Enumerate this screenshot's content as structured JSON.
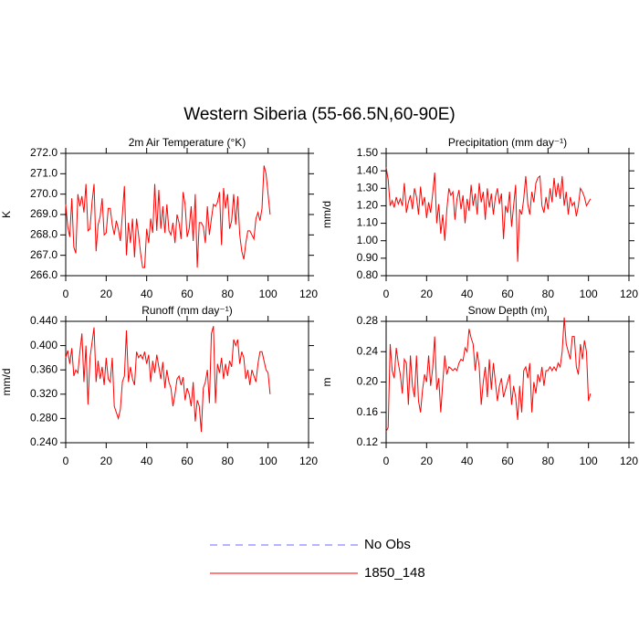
{
  "title": "Western Siberia (55-66.5N,60-90E)",
  "legend": [
    {
      "name": "No Obs",
      "color": "#6b6bff",
      "dash": "8 6"
    },
    {
      "name": "1850_148",
      "color": "#ff0000"
    }
  ],
  "chart_data": [
    {
      "type": "line",
      "title": "2m Air Temperature (°K)",
      "y_label": "K",
      "color": "#ff0000",
      "xlim": [
        0,
        120
      ],
      "xticks": [
        0,
        20,
        40,
        60,
        80,
        100,
        120
      ],
      "ylim": [
        266,
        272
      ],
      "yticks": [
        {
          "value": 266,
          "label": "266.0"
        },
        {
          "value": 267,
          "label": "267.0"
        },
        {
          "value": 268,
          "label": "268.0"
        },
        {
          "value": 269,
          "label": "269.0"
        },
        {
          "value": 270,
          "label": "270.0"
        },
        {
          "value": 271,
          "label": "271.0"
        },
        {
          "value": 272,
          "label": "272.0"
        }
      ],
      "x": [
        0,
        1,
        2,
        3,
        4,
        5,
        6,
        7,
        8,
        9,
        10,
        11,
        12,
        13,
        14,
        15,
        16,
        17,
        18,
        19,
        20,
        21,
        22,
        23,
        24,
        25,
        26,
        27,
        28,
        29,
        30,
        31,
        32,
        33,
        34,
        35,
        36,
        37,
        38,
        39,
        40,
        41,
        42,
        43,
        44,
        45,
        46,
        47,
        48,
        49,
        50,
        51,
        52,
        53,
        54,
        55,
        56,
        57,
        58,
        59,
        60,
        61,
        62,
        63,
        64,
        65,
        66,
        67,
        68,
        69,
        70,
        71,
        72,
        73,
        74,
        75,
        76,
        77,
        78,
        79,
        80,
        81,
        82,
        83,
        84,
        85,
        86,
        87,
        88,
        89,
        90,
        91,
        92,
        93,
        94,
        95,
        96,
        97,
        98,
        99,
        100,
        101
      ],
      "values": [
        269.5,
        268.4,
        267.9,
        269.8,
        267.4,
        267.1,
        270.0,
        269.4,
        269.9,
        269.1,
        270.5,
        268.2,
        268.3,
        269.6,
        270.5,
        267.2,
        268.5,
        268.9,
        269.8,
        268.0,
        268.1,
        269.3,
        269.3,
        268.5,
        268.0,
        268.7,
        268.3,
        267.7,
        269.0,
        270.4,
        267.0,
        268.6,
        267.6,
        268.8,
        266.9,
        268.8,
        268.0,
        267.1,
        266.4,
        266.4,
        268.3,
        267.6,
        268.8,
        268.1,
        270.5,
        268.2,
        270.2,
        268.3,
        269.4,
        268.1,
        269.5,
        268.2,
        268.0,
        268.6,
        267.6,
        269.0,
        268.6,
        267.8,
        270.1,
        269.5,
        267.9,
        268.3,
        269.4,
        267.7,
        270.0,
        266.4,
        268.6,
        268.6,
        268.4,
        267.6,
        269.4,
        268.0,
        268.8,
        269.5,
        269.4,
        269.6,
        270.1,
        267.5,
        270.3,
        269.3,
        270.0,
        268.3,
        268.7,
        270.0,
        268.5,
        269.9,
        268.0,
        267.2,
        266.8,
        267.6,
        268.2,
        268.2,
        268.0,
        267.8,
        268.8,
        269.1,
        268.7,
        269.3,
        271.4,
        271.0,
        270.0,
        269.0
      ]
    },
    {
      "type": "line",
      "title": "Precipitation (mm day⁻¹)",
      "y_label": "mm/d",
      "color": "#ff0000",
      "xlim": [
        0,
        120
      ],
      "xticks": [
        0,
        20,
        40,
        60,
        80,
        100,
        120
      ],
      "ylim": [
        0.8,
        1.5
      ],
      "yticks": [
        {
          "value": 0.8,
          "label": "0.80"
        },
        {
          "value": 0.9,
          "label": "0.90"
        },
        {
          "value": 1.0,
          "label": "1.00"
        },
        {
          "value": 1.1,
          "label": "1.10"
        },
        {
          "value": 1.2,
          "label": "1.20"
        },
        {
          "value": 1.3,
          "label": "1.30"
        },
        {
          "value": 1.4,
          "label": "1.40"
        },
        {
          "value": 1.5,
          "label": "1.50"
        }
      ],
      "x": [
        0,
        1,
        2,
        3,
        4,
        5,
        6,
        7,
        8,
        9,
        10,
        11,
        12,
        13,
        14,
        15,
        16,
        17,
        18,
        19,
        20,
        21,
        22,
        23,
        24,
        25,
        26,
        27,
        28,
        29,
        30,
        31,
        32,
        33,
        34,
        35,
        36,
        37,
        38,
        39,
        40,
        41,
        42,
        43,
        44,
        45,
        46,
        47,
        48,
        49,
        50,
        51,
        52,
        53,
        54,
        55,
        56,
        57,
        58,
        59,
        60,
        61,
        62,
        63,
        64,
        65,
        66,
        67,
        68,
        69,
        70,
        71,
        72,
        73,
        74,
        75,
        76,
        77,
        78,
        79,
        80,
        81,
        82,
        83,
        84,
        85,
        86,
        87,
        88,
        89,
        90,
        91,
        92,
        93,
        94,
        95,
        96,
        97,
        98,
        99,
        100,
        101
      ],
      "values": [
        1.42,
        1.35,
        1.2,
        1.23,
        1.19,
        1.25,
        1.21,
        1.24,
        1.2,
        1.33,
        1.16,
        1.22,
        1.26,
        1.18,
        1.3,
        1.25,
        1.15,
        1.31,
        1.2,
        1.25,
        1.13,
        1.22,
        1.16,
        1.27,
        1.39,
        1.1,
        1.21,
        1.04,
        1.15,
        1.0,
        1.18,
        1.3,
        1.26,
        1.28,
        1.12,
        1.24,
        1.29,
        1.18,
        1.26,
        1.1,
        1.24,
        1.17,
        1.32,
        1.2,
        1.27,
        1.15,
        1.33,
        1.22,
        1.28,
        1.12,
        1.3,
        1.19,
        1.27,
        1.15,
        1.25,
        1.3,
        1.21,
        1.27,
        1.01,
        1.2,
        1.16,
        1.28,
        1.08,
        1.2,
        1.32,
        0.88,
        1.18,
        1.15,
        1.24,
        1.37,
        1.21,
        1.15,
        1.28,
        1.22,
        1.33,
        1.36,
        1.37,
        1.2,
        1.16,
        1.25,
        1.18,
        1.3,
        1.22,
        1.36,
        1.25,
        1.33,
        1.24,
        1.37,
        1.2,
        1.28,
        1.15,
        1.25,
        1.2,
        1.22,
        1.14,
        1.2,
        1.3,
        1.28,
        1.25,
        1.2,
        1.22,
        1.24
      ]
    },
    {
      "type": "line",
      "title": "Runoff (mm day⁻¹)",
      "y_label": "mm/d",
      "color": "#ff0000",
      "xlim": [
        0,
        120
      ],
      "xticks": [
        0,
        20,
        40,
        60,
        80,
        100,
        120
      ],
      "ylim": [
        0.24,
        0.44
      ],
      "yticks": [
        {
          "value": 0.24,
          "label": "0.240"
        },
        {
          "value": 0.28,
          "label": "0.280"
        },
        {
          "value": 0.32,
          "label": "0.320"
        },
        {
          "value": 0.36,
          "label": "0.360"
        },
        {
          "value": 0.4,
          "label": "0.400"
        },
        {
          "value": 0.44,
          "label": "0.440"
        }
      ],
      "x": [
        0,
        1,
        2,
        3,
        4,
        5,
        6,
        7,
        8,
        9,
        10,
        11,
        12,
        13,
        14,
        15,
        16,
        17,
        18,
        19,
        20,
        21,
        22,
        23,
        24,
        25,
        26,
        27,
        28,
        29,
        30,
        31,
        32,
        33,
        34,
        35,
        36,
        37,
        38,
        39,
        40,
        41,
        42,
        43,
        44,
        45,
        46,
        47,
        48,
        49,
        50,
        51,
        52,
        53,
        54,
        55,
        56,
        57,
        58,
        59,
        60,
        61,
        62,
        63,
        64,
        65,
        66,
        67,
        68,
        69,
        70,
        71,
        72,
        73,
        74,
        75,
        76,
        77,
        78,
        79,
        80,
        81,
        82,
        83,
        84,
        85,
        86,
        87,
        88,
        89,
        90,
        91,
        92,
        93,
        94,
        95,
        96,
        97,
        98,
        99,
        100,
        101
      ],
      "values": [
        0.38,
        0.392,
        0.37,
        0.396,
        0.35,
        0.36,
        0.355,
        0.39,
        0.42,
        0.34,
        0.4,
        0.303,
        0.38,
        0.405,
        0.43,
        0.34,
        0.375,
        0.345,
        0.365,
        0.335,
        0.38,
        0.345,
        0.34,
        0.38,
        0.3,
        0.29,
        0.28,
        0.295,
        0.34,
        0.35,
        0.425,
        0.34,
        0.365,
        0.345,
        0.335,
        0.39,
        0.38,
        0.385,
        0.378,
        0.39,
        0.37,
        0.385,
        0.34,
        0.375,
        0.355,
        0.385,
        0.365,
        0.345,
        0.373,
        0.33,
        0.36,
        0.34,
        0.33,
        0.3,
        0.32,
        0.345,
        0.35,
        0.335,
        0.348,
        0.31,
        0.33,
        0.32,
        0.3,
        0.34,
        0.275,
        0.31,
        0.3,
        0.258,
        0.33,
        0.34,
        0.36,
        0.305,
        0.42,
        0.432,
        0.305,
        0.37,
        0.355,
        0.38,
        0.345,
        0.37,
        0.35,
        0.375,
        0.365,
        0.41,
        0.4,
        0.41,
        0.37,
        0.39,
        0.38,
        0.345,
        0.36,
        0.335,
        0.36,
        0.35,
        0.34,
        0.37,
        0.39,
        0.39,
        0.375,
        0.36,
        0.355,
        0.32
      ]
    },
    {
      "type": "line",
      "title": "Snow Depth (m)",
      "y_label": "m",
      "color": "#ff0000",
      "xlim": [
        0,
        120
      ],
      "xticks": [
        0,
        20,
        40,
        60,
        80,
        100,
        120
      ],
      "ylim": [
        0.12,
        0.28
      ],
      "yticks": [
        0.12,
        0.16,
        {
          "value": 0.2,
          "label": "0.20"
        },
        0.24,
        0.28
      ],
      "x": [
        0,
        1,
        2,
        3,
        4,
        5,
        6,
        7,
        8,
        9,
        10,
        11,
        12,
        13,
        14,
        15,
        16,
        17,
        18,
        19,
        20,
        21,
        22,
        23,
        24,
        25,
        26,
        27,
        28,
        29,
        30,
        31,
        32,
        33,
        34,
        35,
        36,
        37,
        38,
        39,
        40,
        41,
        42,
        43,
        44,
        45,
        46,
        47,
        48,
        49,
        50,
        51,
        52,
        53,
        54,
        55,
        56,
        57,
        58,
        59,
        60,
        61,
        62,
        63,
        64,
        65,
        66,
        67,
        68,
        69,
        70,
        71,
        72,
        73,
        74,
        75,
        76,
        77,
        78,
        79,
        80,
        81,
        82,
        83,
        84,
        85,
        86,
        87,
        88,
        89,
        90,
        91,
        92,
        93,
        94,
        95,
        96,
        97,
        98,
        99,
        100,
        101
      ],
      "values": [
        0.135,
        0.14,
        0.25,
        0.215,
        0.205,
        0.245,
        0.225,
        0.21,
        0.185,
        0.23,
        0.225,
        0.17,
        0.235,
        0.195,
        0.18,
        0.235,
        0.175,
        0.16,
        0.19,
        0.21,
        0.2,
        0.235,
        0.195,
        0.218,
        0.26,
        0.19,
        0.205,
        0.16,
        0.2,
        0.235,
        0.21,
        0.22,
        0.218,
        0.215,
        0.218,
        0.215,
        0.225,
        0.23,
        0.228,
        0.245,
        0.24,
        0.27,
        0.258,
        0.25,
        0.215,
        0.24,
        0.22,
        0.17,
        0.2,
        0.22,
        0.18,
        0.23,
        0.19,
        0.225,
        0.2,
        0.175,
        0.195,
        0.205,
        0.18,
        0.19,
        0.2,
        0.21,
        0.17,
        0.195,
        0.18,
        0.15,
        0.195,
        0.16,
        0.215,
        0.22,
        0.205,
        0.225,
        0.16,
        0.2,
        0.185,
        0.21,
        0.2,
        0.22,
        0.195,
        0.215,
        0.215,
        0.22,
        0.215,
        0.22,
        0.215,
        0.225,
        0.22,
        0.24,
        0.285,
        0.25,
        0.24,
        0.23,
        0.26,
        0.26,
        0.22,
        0.21,
        0.25,
        0.23,
        0.255,
        0.24,
        0.175,
        0.185
      ]
    }
  ]
}
